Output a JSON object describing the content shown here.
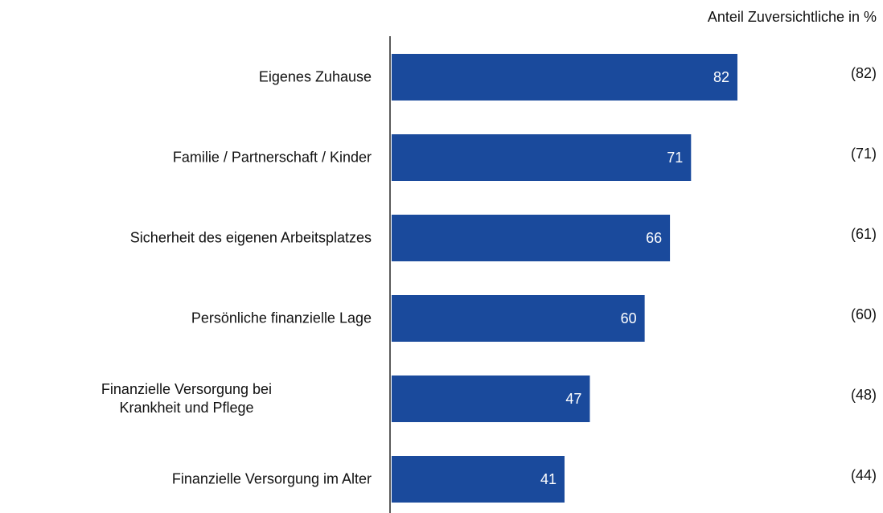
{
  "chart_data": {
    "type": "hbar",
    "axis_title": "Anteil Zuversichtliche in %",
    "categories": [
      "Eigenes Zuhause",
      "Familie / Partnerschaft / Kinder",
      "Sicherheit des eigenen Arbeitsplatzes",
      "Persönliche finanzielle Lage",
      "Finanzielle Versorgung bei\nKrankheit und Pflege",
      "Finanzielle Versorgung im Alter"
    ],
    "series": [
      {
        "color": "#1a4a9c",
        "values": [
          82,
          71,
          66,
          60,
          47,
          41
        ]
      },
      {
        "values": [
          82,
          71,
          61,
          60,
          48,
          44
        ],
        "value_labels": [
          "(82)",
          "(71)",
          "(61)",
          "(60)",
          "(48)",
          "(44)"
        ]
      }
    ],
    "xlim": [
      0,
      100
    ]
  }
}
